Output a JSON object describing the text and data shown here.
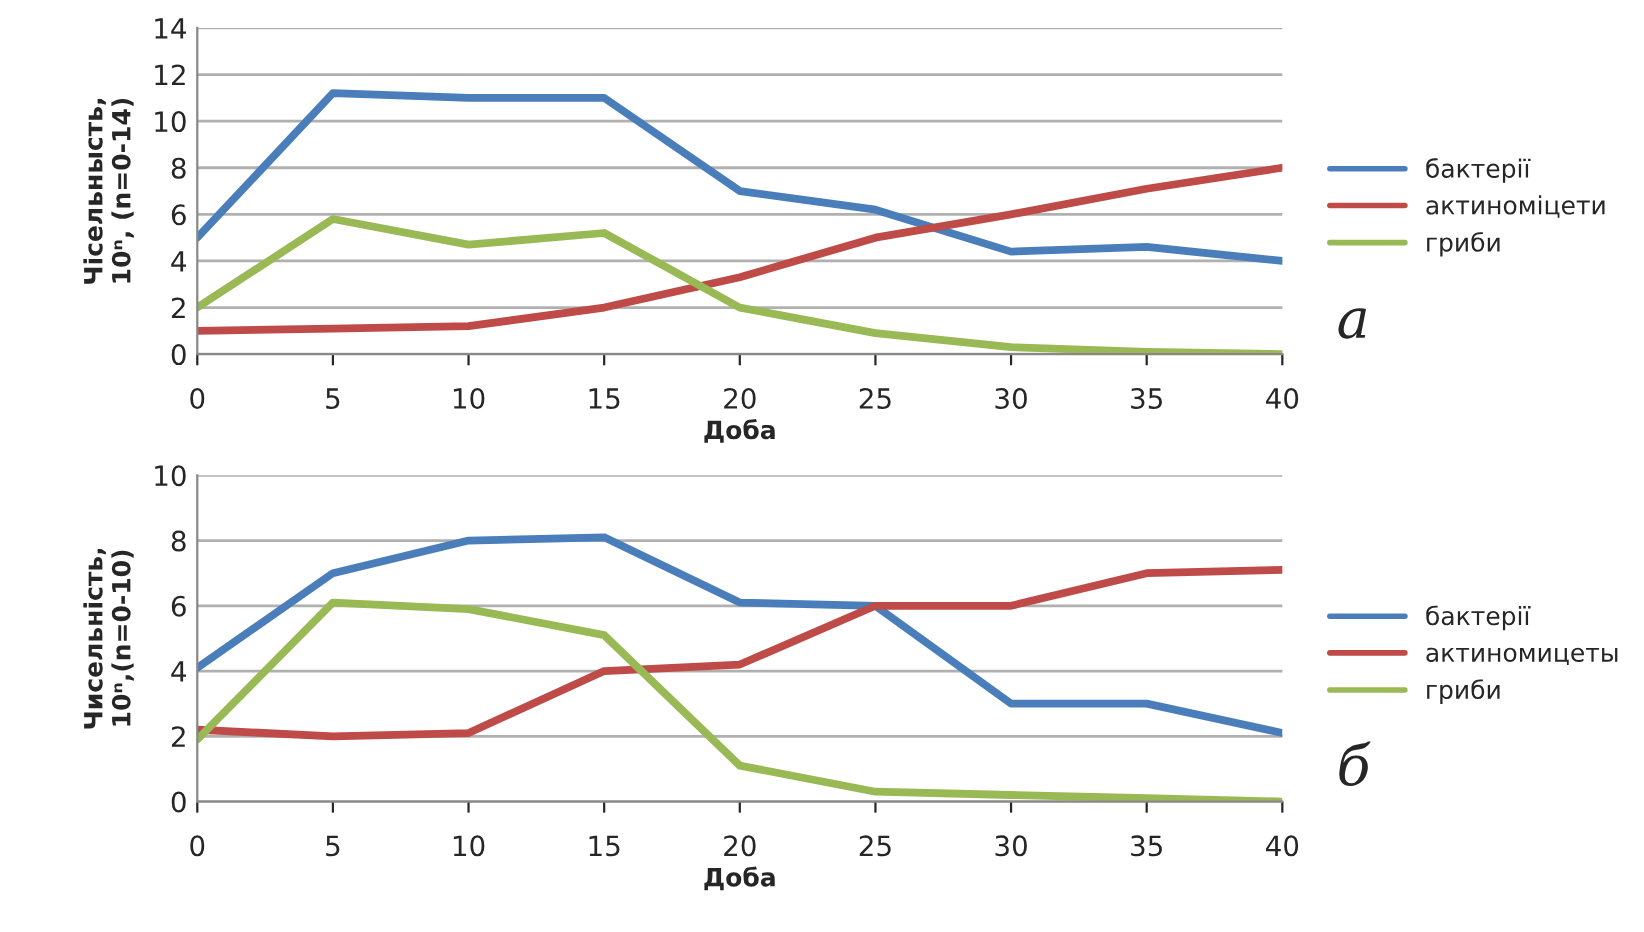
{
  "chart_data": [
    {
      "type": "line",
      "xlabel": "Доба",
      "ylabel": "Чісельныcть,\n10ⁿ, (n=0-14)",
      "x": [
        0,
        5,
        10,
        15,
        20,
        25,
        30,
        35,
        40
      ],
      "series": [
        {
          "name": "бактерії",
          "color": "#4a7ebb",
          "values": [
            5,
            11.2,
            11,
            11,
            7,
            6.2,
            4.4,
            4.6,
            4
          ]
        },
        {
          "name": "актиноміцети",
          "color": "#be4b48",
          "values": [
            1,
            1.1,
            1.2,
            2,
            3.3,
            5,
            6,
            7.1,
            8
          ]
        },
        {
          "name": "гриби",
          "color": "#98b954",
          "values": [
            2,
            5.8,
            4.7,
            5.2,
            2,
            0.9,
            0.3,
            0.1,
            0
          ]
        }
      ],
      "xlim": [
        0,
        40
      ],
      "xticks": [
        0,
        5,
        10,
        15,
        20,
        25,
        30,
        35,
        40
      ],
      "ylim": [
        0,
        14
      ],
      "yticks": [
        0,
        2,
        4,
        6,
        8,
        10,
        12,
        14
      ],
      "grid": "y",
      "legend": "right",
      "marker": "none",
      "line_style": "solid",
      "annotations": [
        "а"
      ]
    },
    {
      "type": "line",
      "xlabel": "Доба",
      "ylabel": "Чисельність,\n10ⁿ,(n=0-10)",
      "x": [
        0,
        5,
        10,
        15,
        20,
        25,
        30,
        35,
        40
      ],
      "series": [
        {
          "name": "бактерії",
          "color": "#4a7ebb",
          "values": [
            4.1,
            7,
            8,
            8.1,
            6.1,
            6,
            3,
            3,
            2.1
          ]
        },
        {
          "name": "актиномицеты",
          "color": "#be4b48",
          "values": [
            2.2,
            2,
            2.1,
            4,
            4.2,
            6,
            6,
            7,
            7.1
          ]
        },
        {
          "name": "гриби",
          "color": "#98b954",
          "values": [
            1.9,
            6.1,
            5.9,
            5.1,
            1.1,
            0.3,
            0.2,
            0.1,
            0
          ]
        }
      ],
      "xlim": [
        0,
        40
      ],
      "xticks": [
        0,
        5,
        10,
        15,
        20,
        25,
        30,
        35,
        40
      ],
      "ylim": [
        0,
        10
      ],
      "yticks": [
        0,
        2,
        4,
        6,
        8,
        10
      ],
      "grid": "y",
      "legend": "right",
      "marker": "none",
      "line_style": "solid",
      "annotations": [
        "б"
      ]
    }
  ]
}
